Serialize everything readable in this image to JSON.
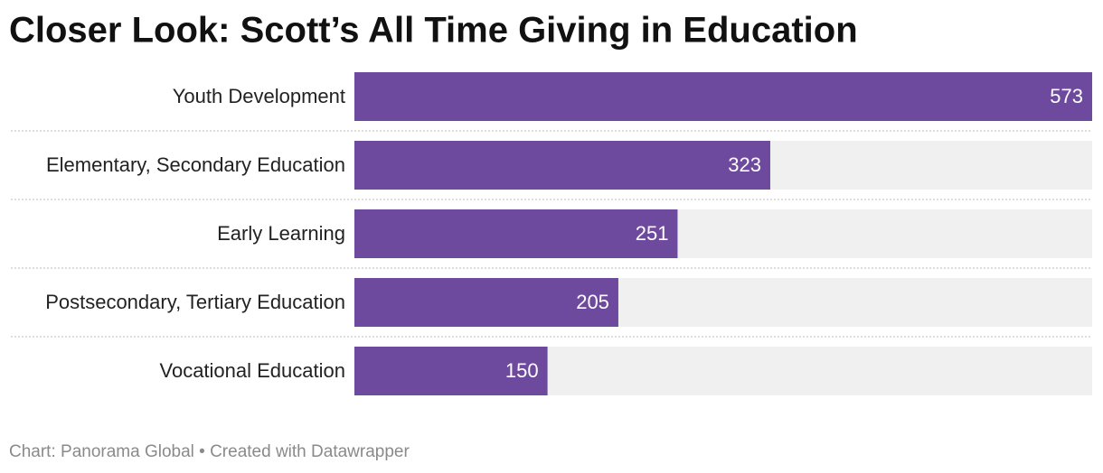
{
  "chart_data": {
    "type": "bar",
    "orientation": "horizontal",
    "title": "Closer Look: Scott’s All Time Giving in Education",
    "categories": [
      "Youth Development",
      "Elementary, Secondary Education",
      "Early Learning",
      "Postsecondary, Tertiary Education",
      "Vocational Education"
    ],
    "values": [
      573,
      323,
      251,
      205,
      150
    ],
    "color": "#6e4a9e",
    "source": "Chart: Panorama Global • Created with Datawrapper"
  }
}
